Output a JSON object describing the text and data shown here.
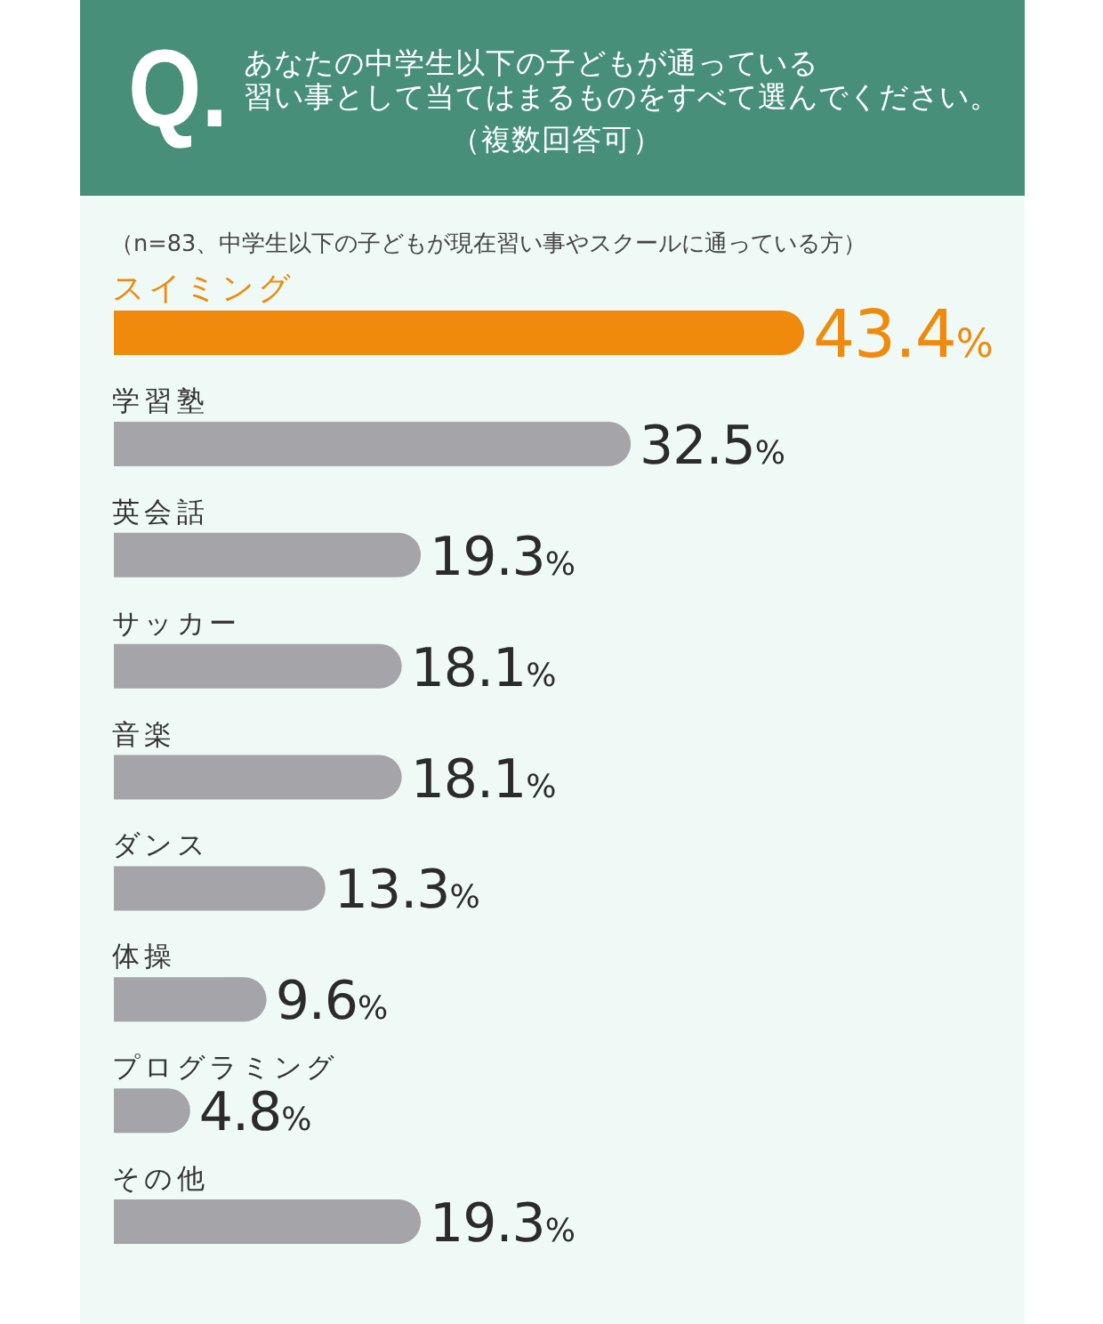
{
  "chart_data": {
    "type": "bar",
    "orientation": "horizontal",
    "title": "あなたの中学生以下の子どもが通っている習い事として当てはまるものをすべて選んでください。（複数回答可）",
    "subtitle": "（n=83、中学生以下の子どもが現在習い事やスクールに通っている方）",
    "annotations": [
      "Q."
    ],
    "categories": [
      "スイミング",
      "学習塾",
      "英会話",
      "サッカー",
      "音楽",
      "ダンス",
      "体操",
      "プログラミング",
      "その他"
    ],
    "values": [
      43.4,
      32.5,
      19.3,
      18.1,
      18.1,
      13.3,
      9.6,
      4.8,
      19.3
    ],
    "colors": [
      "#ef8a0c",
      "#a4a4a9",
      "#a4a4a9",
      "#a4a4a9",
      "#a4a4a9",
      "#a4a4a9",
      "#a4a4a9",
      "#a4a4a9",
      "#a4a4a9"
    ],
    "value_labels": [
      "43.4%",
      "32.5%",
      "19.3%",
      "18.1%",
      "18.1%",
      "13.3%",
      "9.6%",
      "4.8%",
      "19.3%"
    ]
  }
}
